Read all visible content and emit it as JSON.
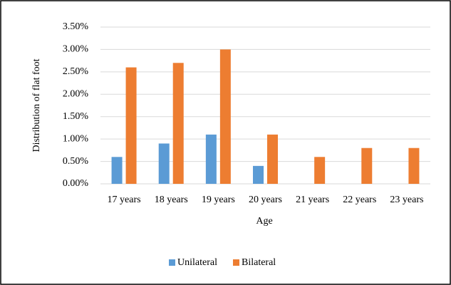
{
  "chart_data": {
    "type": "bar",
    "categories": [
      "17 years",
      "18 years",
      "19 years",
      "20 years",
      "21 years",
      "22 years",
      "23 years"
    ],
    "series": [
      {
        "name": "Unilateral",
        "color": "#5b9bd5",
        "values": [
          0.6,
          0.9,
          1.1,
          0.4,
          0,
          0,
          0
        ]
      },
      {
        "name": "Bilateral",
        "color": "#ed7d31",
        "values": [
          2.6,
          2.7,
          3.0,
          1.1,
          0.6,
          0.8,
          0.8
        ]
      }
    ],
    "x_label": "Age",
    "y_label": "Distribution of flat foot",
    "ylim": [
      0,
      3.5
    ],
    "yticks": [
      {
        "value": 0,
        "label": "0.00%"
      },
      {
        "value": 0.5,
        "label": "0.50%"
      },
      {
        "value": 1,
        "label": "1.00%"
      },
      {
        "value": 1.5,
        "label": "1.50%"
      },
      {
        "value": 2,
        "label": "2.00%"
      },
      {
        "value": 2.5,
        "label": "2.50%"
      },
      {
        "value": 3,
        "label": "3.00%"
      },
      {
        "value": 3.5,
        "label": "3.50%"
      }
    ],
    "grid": true,
    "legend": "bottom"
  }
}
